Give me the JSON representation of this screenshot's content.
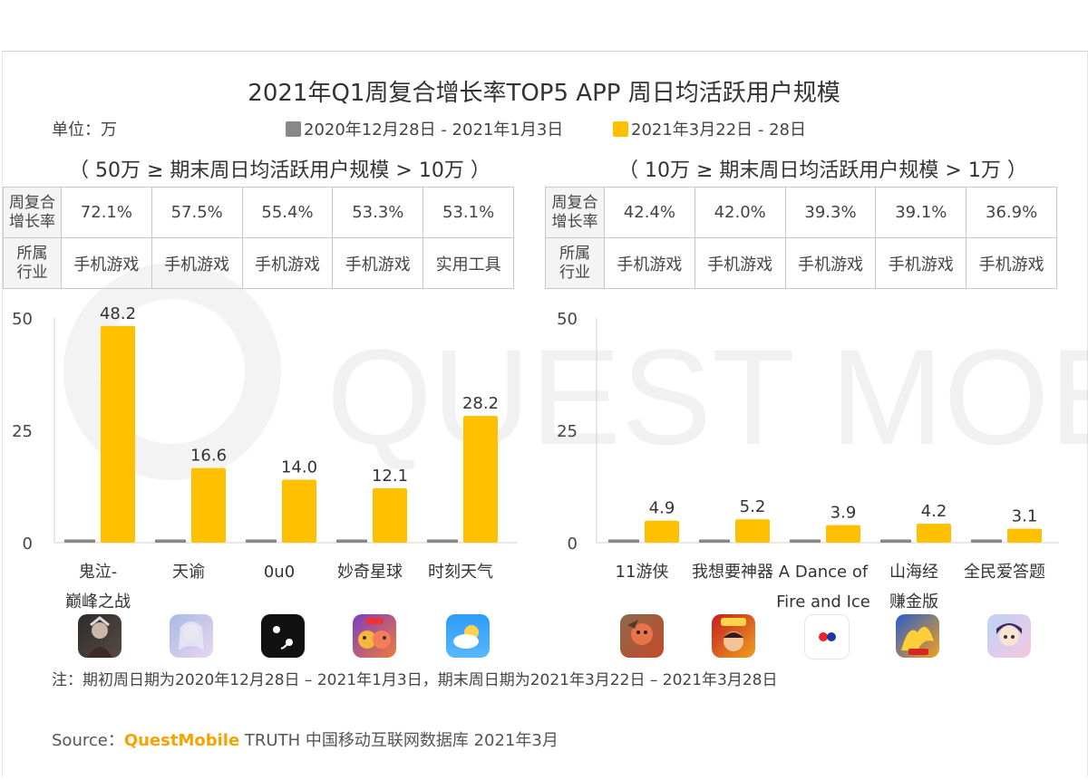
{
  "title": "2021年Q1周复合增长率TOP5 APP 周日均活跃用户规模",
  "unit": "单位：万",
  "legend": [
    {
      "label": "2020年12月28日 - 2021年1月3日",
      "color": "#888888"
    },
    {
      "label": "2021年3月22日 - 28日",
      "color": "#ffc000"
    }
  ],
  "watermark": "QUEST MOBILE",
  "table_headers": {
    "growth": "周复合增长率",
    "industry": "所属行业"
  },
  "panels": [
    {
      "subtitle": "（ 50万 ≥ 期末周日均活跃用户规模 > 10万 ）",
      "growth": [
        "72.1%",
        "57.5%",
        "55.4%",
        "53.3%",
        "53.1%"
      ],
      "industry": [
        "手机游戏",
        "手机游戏",
        "手机游戏",
        "手机游戏",
        "实用工具"
      ],
      "app_labels": [
        "鬼泣-\n巅峰之战",
        "天谕",
        "0u0",
        "妙奇星球",
        "时刻天气"
      ],
      "icons": [
        "devil-may-cry-app-icon",
        "tianyu-app-icon",
        "ouo-app-icon",
        "miaoqi-planet-app-icon",
        "weather-app-icon"
      ]
    },
    {
      "subtitle": "（ 10万 ≥ 期末周日均活跃用户规模 > 1万 ）",
      "growth": [
        "42.4%",
        "42.0%",
        "39.3%",
        "39.1%",
        "36.9%"
      ],
      "industry": [
        "手机游戏",
        "手机游戏",
        "手机游戏",
        "手机游戏",
        "手机游戏"
      ],
      "app_labels": [
        "11游侠",
        "我想要神器",
        "A Dance of\nFire and Ice",
        "山海经\n赚金版",
        "全民爱答题"
      ],
      "icons": [
        "youxia-app-icon",
        "shenqi-app-icon",
        "dance-of-fire-app-icon",
        "shanhaijing-app-icon",
        "quiz-app-icon"
      ]
    }
  ],
  "chart_data": [
    {
      "type": "bar",
      "categories": [
        "鬼泣-巅峰之战",
        "天谕",
        "0u0",
        "妙奇星球",
        "时刻天气"
      ],
      "series": [
        {
          "name": "2020年12月28日 - 2021年1月3日",
          "values": [
            0.3,
            0.3,
            0.3,
            0.3,
            0.3
          ],
          "color": "#888888"
        },
        {
          "name": "2021年3月22日 - 28日",
          "values": [
            48.2,
            16.6,
            14.0,
            12.1,
            28.2
          ],
          "color": "#ffc000"
        }
      ],
      "data_labels": [
        "48.2",
        "16.6",
        "14.0",
        "12.1",
        "28.2"
      ],
      "yticks": [
        0,
        25,
        50
      ],
      "ylim": [
        0,
        50
      ],
      "grid": false
    },
    {
      "type": "bar",
      "categories": [
        "11游侠",
        "我想要神器",
        "A Dance of Fire and Ice",
        "山海经赚金版",
        "全民爱答题"
      ],
      "series": [
        {
          "name": "2020年12月28日 - 2021年1月3日",
          "values": [
            0.3,
            0.3,
            0.3,
            0.3,
            0.3
          ],
          "color": "#888888"
        },
        {
          "name": "2021年3月22日 - 28日",
          "values": [
            4.9,
            5.2,
            3.9,
            4.2,
            3.1
          ],
          "color": "#ffc000"
        }
      ],
      "data_labels": [
        "4.9",
        "5.2",
        "3.9",
        "4.2",
        "3.1"
      ],
      "yticks": [
        0,
        25,
        50
      ],
      "ylim": [
        0,
        50
      ],
      "grid": false
    }
  ],
  "note": "注：期初周日期为2020年12月28日 – 2021年1月3日，期末周日期为2021年3月22日 – 2021年3月28日",
  "source": {
    "prefix": "Source：",
    "brand": "QuestMobile",
    "rest": " TRUTH 中国移动互联网数据库 2021年3月"
  }
}
